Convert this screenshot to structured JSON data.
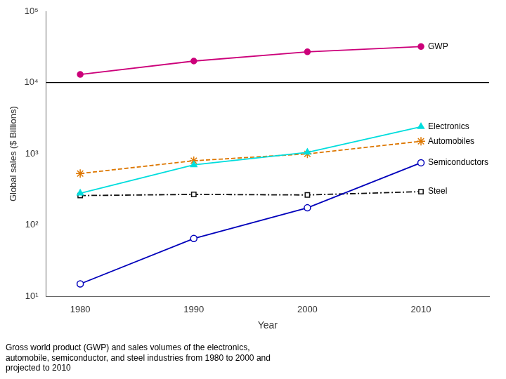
{
  "chart_data": {
    "type": "line",
    "x_label": "Year",
    "y_label": "Global sales ($ Billions)",
    "caption": "Gross world product (GWP) and sales volumes of the electronics,\nautomobile, semiconductor, and steel industries from 1980 to 2000 and\nprojected to 2010",
    "log": "y",
    "grid": false,
    "x": [
      1980,
      1990,
      2000,
      2010
    ],
    "series": [
      {
        "name": "GWP",
        "color": "#CC007A",
        "values": [
          13000,
          20000,
          27000,
          32000
        ],
        "marker": "circle",
        "line_style": "solid"
      },
      {
        "name": "Electronics",
        "color": "#00DDDD",
        "values": [
          280,
          700,
          1050,
          2400
        ],
        "marker": "triangle",
        "line_style": "solid"
      },
      {
        "name": "Automobiles",
        "color": "#DD7700",
        "values": [
          530,
          800,
          1000,
          1500
        ],
        "marker": "star",
        "line_style": "dashed"
      },
      {
        "name": "Semiconductors",
        "color": "#0000BB",
        "values": [
          15,
          65,
          175,
          750
        ],
        "marker": "open_circle",
        "line_style": "solid"
      },
      {
        "name": "Steel",
        "color": "#111111",
        "values": [
          260,
          270,
          265,
          295
        ],
        "marker": "open_square",
        "line_style": "dashdot"
      }
    ],
    "xlim": [
      1977,
      2016
    ],
    "xticks": [
      1980,
      1990,
      2000,
      2010
    ],
    "ylim": [
      10,
      100000
    ],
    "yticks": [
      {
        "value": 10,
        "label": "10¹"
      },
      {
        "value": 100,
        "label": "10²"
      },
      {
        "value": 1000,
        "label": "10³"
      },
      {
        "value": 10000,
        "label": "10⁴"
      },
      {
        "value": 100000,
        "label": "10⁵"
      }
    ],
    "reference_line_y": 10000,
    "annotations": [
      {
        "text": "GWP",
        "x": 2010,
        "y": 32000
      },
      {
        "text": "Electronics",
        "x": 2010,
        "y": 2400
      },
      {
        "text": "Automobiles",
        "x": 2010,
        "y": 1500
      },
      {
        "text": "Semiconductors",
        "x": 2010,
        "y": 750
      },
      {
        "text": "Steel",
        "x": 2010,
        "y": 295
      }
    ]
  }
}
